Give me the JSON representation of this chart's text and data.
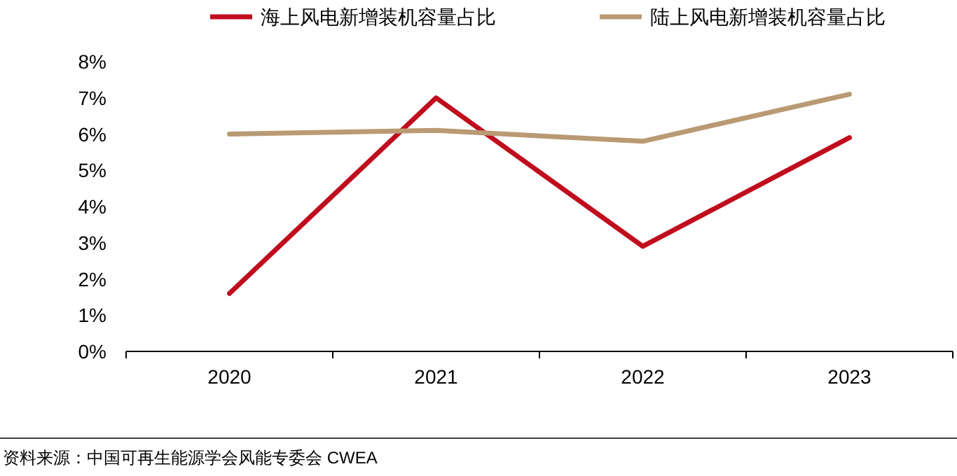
{
  "chart_data": {
    "type": "line",
    "categories": [
      "2020",
      "2021",
      "2022",
      "2023"
    ],
    "series": [
      {
        "name": "海上风电新增装机容量占比",
        "color": "#c00d1e",
        "values": [
          1.6,
          7.0,
          2.9,
          5.9
        ]
      },
      {
        "name": "陆上风电新增装机容量占比",
        "color": "#b99a74",
        "values": [
          6.0,
          6.1,
          5.8,
          7.1
        ]
      }
    ],
    "ylim": [
      0,
      8
    ],
    "yticks": [
      {
        "value": 0,
        "label": "0%"
      },
      {
        "value": 1,
        "label": "1%"
      },
      {
        "value": 2,
        "label": "2%"
      },
      {
        "value": 3,
        "label": "3%"
      },
      {
        "value": 4,
        "label": "4%"
      },
      {
        "value": 5,
        "label": "5%"
      },
      {
        "value": 6,
        "label": "6%"
      },
      {
        "value": 7,
        "label": "7%"
      },
      {
        "value": 8,
        "label": "8%"
      }
    ],
    "legend": "top",
    "grid": false,
    "marker": "none",
    "line_style": "solid",
    "annotations": [
      "资料来源：中国可再生能源学会风能专委会 CWEA"
    ]
  }
}
